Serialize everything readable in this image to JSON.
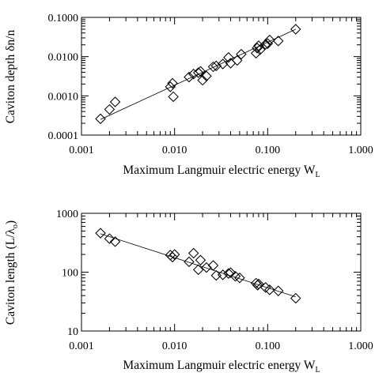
{
  "chart_data": [
    {
      "type": "scatter",
      "xscale": "log",
      "yscale": "log",
      "xlim": [
        0.001,
        1.0
      ],
      "ylim": [
        0.0001,
        0.1
      ],
      "x_tick_values": [
        0.001,
        0.01,
        0.1,
        1.0
      ],
      "x_tick_labels": [
        "0.001",
        "0.010",
        "0.100",
        "1.000"
      ],
      "y_tick_values": [
        0.0001,
        0.001,
        0.01,
        0.1
      ],
      "y_tick_labels": [
        "0.0001",
        "0.0010",
        "0.0100",
        "0.1000"
      ],
      "xlabel": "Maximum Langmuir electric energy W",
      "xlabel_sub": "L",
      "ylabel": "Caviton depth δn/n",
      "grid": false,
      "marker": "diamond-open",
      "fit_line": {
        "x": [
          0.0016,
          0.2
        ],
        "y": [
          0.00025,
          0.05
        ]
      },
      "series": [
        {
          "x": [
            0.0016,
            0.002,
            0.0023,
            0.009,
            0.0095,
            0.0097,
            0.0143,
            0.016,
            0.018,
            0.019,
            0.02,
            0.022,
            0.026,
            0.028,
            0.033,
            0.038,
            0.04,
            0.047,
            0.052,
            0.075,
            0.077,
            0.08,
            0.083,
            0.095,
            0.1,
            0.105,
            0.13,
            0.2
          ],
          "y": [
            0.00026,
            0.00045,
            0.0007,
            0.0017,
            0.0021,
            0.00095,
            0.003,
            0.0036,
            0.0039,
            0.0042,
            0.0025,
            0.0032,
            0.0055,
            0.0058,
            0.0065,
            0.0095,
            0.0068,
            0.008,
            0.0115,
            0.0122,
            0.0165,
            0.019,
            0.015,
            0.0205,
            0.0215,
            0.0265,
            0.025,
            0.05
          ]
        }
      ]
    },
    {
      "type": "scatter",
      "xscale": "log",
      "yscale": "log",
      "xlim": [
        0.001,
        1.0
      ],
      "ylim": [
        10,
        1000
      ],
      "x_tick_values": [
        0.001,
        0.01,
        0.1,
        1.0
      ],
      "x_tick_labels": [
        "0.001",
        "0.010",
        "0.100",
        "1.000"
      ],
      "y_tick_values": [
        10,
        100,
        1000
      ],
      "y_tick_labels": [
        "10",
        "100",
        "1000"
      ],
      "xlabel": "Maximum Langmuir electric energy W",
      "xlabel_sub": "L",
      "ylabel": "Caviton length (L/λ",
      "ylabel_sub": "o",
      "ylabel_end": ")",
      "grid": false,
      "marker": "diamond-open",
      "fit_line": {
        "x": [
          0.0016,
          0.2
        ],
        "y": [
          450,
          38
        ]
      },
      "series": [
        {
          "x": [
            0.0016,
            0.002,
            0.0023,
            0.009,
            0.0095,
            0.01,
            0.0143,
            0.016,
            0.018,
            0.019,
            0.022,
            0.026,
            0.028,
            0.033,
            0.038,
            0.04,
            0.045,
            0.05,
            0.075,
            0.078,
            0.08,
            0.095,
            0.105,
            0.13,
            0.2
          ],
          "y": [
            460,
            370,
            330,
            195,
            180,
            200,
            150,
            210,
            110,
            160,
            120,
            130,
            88,
            90,
            95,
            98,
            85,
            80,
            65,
            60,
            63,
            55,
            50,
            48,
            36
          ]
        }
      ]
    }
  ]
}
